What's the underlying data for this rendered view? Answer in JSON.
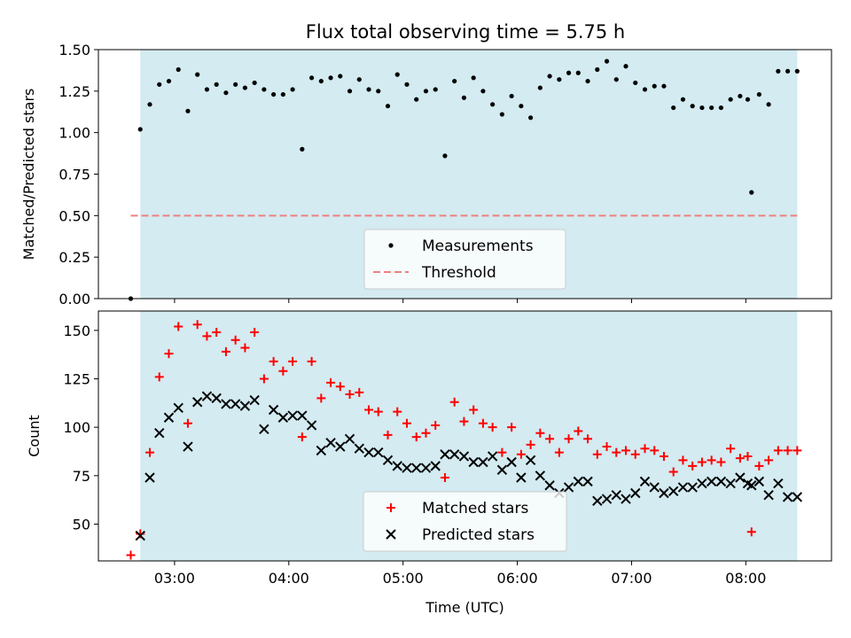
{
  "title": "Flux total observing time = 5.75 h",
  "colors": {
    "shade": "#d3ebf1",
    "measurement": "#000000",
    "threshold": "#f08080",
    "matched": "#ff0000",
    "predicted": "#000000"
  },
  "top_legend": {
    "measurements": "Measurements",
    "threshold": "Threshold"
  },
  "bottom_legend": {
    "matched": "Matched stars",
    "predicted": "Predicted stars"
  },
  "chart_data": [
    {
      "type": "scatter",
      "ylabel": "Matched/Predicted stars",
      "xlabel": "",
      "xlim": [
        "02:20",
        "08:45"
      ],
      "ylim": [
        0,
        1.5
      ],
      "yticks": [
        "0.00",
        "0.25",
        "0.50",
        "0.75",
        "1.00",
        "1.25",
        "1.50"
      ],
      "xticks": [
        "03:00",
        "04:00",
        "05:00",
        "06:00",
        "07:00",
        "08:00"
      ],
      "shaded_range": [
        "02:42",
        "08:27"
      ],
      "threshold": {
        "name": "Threshold",
        "y": 0.5,
        "x_range": [
          "02:37",
          "08:27"
        ]
      },
      "legend": "lower center",
      "series": [
        {
          "name": "Measurements",
          "x": [
            "02:37",
            "02:42",
            "02:47",
            "02:52",
            "02:57",
            "03:02",
            "03:07",
            "03:12",
            "03:17",
            "03:22",
            "03:27",
            "03:32",
            "03:37",
            "03:42",
            "03:47",
            "03:52",
            "03:57",
            "04:02",
            "04:07",
            "04:12",
            "04:17",
            "04:22",
            "04:27",
            "04:32",
            "04:37",
            "04:42",
            "04:47",
            "04:52",
            "04:57",
            "05:02",
            "05:07",
            "05:12",
            "05:17",
            "05:22",
            "05:27",
            "05:32",
            "05:37",
            "05:42",
            "05:47",
            "05:52",
            "05:57",
            "06:02",
            "06:07",
            "06:12",
            "06:17",
            "06:22",
            "06:27",
            "06:32",
            "06:37",
            "06:42",
            "06:47",
            "06:52",
            "06:57",
            "07:02",
            "07:07",
            "07:12",
            "07:17",
            "07:22",
            "07:27",
            "07:32",
            "07:37",
            "07:42",
            "07:47",
            "07:52",
            "07:57",
            "08:01",
            "08:03",
            "08:07",
            "08:12",
            "08:17",
            "08:22",
            "08:27"
          ],
          "y": [
            0.0,
            1.02,
            1.17,
            1.29,
            1.31,
            1.38,
            1.13,
            1.35,
            1.26,
            1.29,
            1.24,
            1.29,
            1.27,
            1.3,
            1.26,
            1.23,
            1.23,
            1.26,
            0.9,
            1.33,
            1.31,
            1.33,
            1.34,
            1.25,
            1.32,
            1.26,
            1.25,
            1.16,
            1.35,
            1.29,
            1.2,
            1.25,
            1.26,
            0.86,
            1.31,
            1.21,
            1.33,
            1.25,
            1.17,
            1.11,
            1.22,
            1.16,
            1.09,
            1.27,
            1.34,
            1.32,
            1.36,
            1.36,
            1.31,
            1.38,
            1.43,
            1.32,
            1.4,
            1.3,
            1.26,
            1.28,
            1.28,
            1.15,
            1.2,
            1.16,
            1.15,
            1.15,
            1.15,
            1.2,
            1.22,
            1.2,
            0.64,
            1.23,
            1.17,
            1.37,
            1.37,
            1.37
          ]
        }
      ]
    },
    {
      "type": "scatter",
      "ylabel": "Count",
      "xlabel": "Time (UTC)",
      "xlim": [
        "02:20",
        "08:45"
      ],
      "ylim": [
        31,
        160
      ],
      "yticks": [
        "50",
        "75",
        "100",
        "125",
        "150"
      ],
      "xticks": [
        "03:00",
        "04:00",
        "05:00",
        "06:00",
        "07:00",
        "08:00"
      ],
      "shaded_range": [
        "02:42",
        "08:27"
      ],
      "legend": "lower center",
      "series": [
        {
          "name": "Matched stars",
          "x": [
            "02:37",
            "02:42",
            "02:47",
            "02:52",
            "02:57",
            "03:02",
            "03:07",
            "03:12",
            "03:17",
            "03:22",
            "03:27",
            "03:32",
            "03:37",
            "03:42",
            "03:47",
            "03:52",
            "03:57",
            "04:02",
            "04:07",
            "04:12",
            "04:17",
            "04:22",
            "04:27",
            "04:32",
            "04:37",
            "04:42",
            "04:47",
            "04:52",
            "04:57",
            "05:02",
            "05:07",
            "05:12",
            "05:17",
            "05:22",
            "05:27",
            "05:32",
            "05:37",
            "05:42",
            "05:47",
            "05:52",
            "05:57",
            "06:02",
            "06:07",
            "06:12",
            "06:17",
            "06:22",
            "06:27",
            "06:32",
            "06:37",
            "06:42",
            "06:47",
            "06:52",
            "06:57",
            "07:02",
            "07:07",
            "07:12",
            "07:17",
            "07:22",
            "07:27",
            "07:32",
            "07:37",
            "07:42",
            "07:47",
            "07:52",
            "07:57",
            "08:01",
            "08:03",
            "08:07",
            "08:12",
            "08:17",
            "08:22",
            "08:27"
          ],
          "y": [
            34,
            45,
            87,
            126,
            138,
            152,
            102,
            153,
            147,
            149,
            139,
            145,
            141,
            149,
            125,
            134,
            129,
            134,
            95,
            134,
            115,
            123,
            121,
            117,
            118,
            109,
            108,
            96,
            108,
            102,
            95,
            97,
            101,
            74,
            113,
            103,
            109,
            102,
            100,
            87,
            100,
            86,
            91,
            97,
            94,
            87,
            94,
            98,
            94,
            86,
            90,
            87,
            88,
            86,
            89,
            88,
            85,
            77,
            83,
            80,
            82,
            83,
            82,
            89,
            84,
            85,
            46,
            80,
            83,
            88,
            88,
            88
          ]
        },
        {
          "name": "Predicted stars",
          "x": [
            "02:42",
            "02:47",
            "02:52",
            "02:57",
            "03:02",
            "03:07",
            "03:12",
            "03:17",
            "03:22",
            "03:27",
            "03:32",
            "03:37",
            "03:42",
            "03:47",
            "03:52",
            "03:57",
            "04:02",
            "04:07",
            "04:12",
            "04:17",
            "04:22",
            "04:27",
            "04:32",
            "04:37",
            "04:42",
            "04:47",
            "04:52",
            "04:57",
            "05:02",
            "05:07",
            "05:12",
            "05:17",
            "05:22",
            "05:27",
            "05:32",
            "05:37",
            "05:42",
            "05:47",
            "05:52",
            "05:57",
            "06:02",
            "06:07",
            "06:12",
            "06:17",
            "06:22",
            "06:27",
            "06:32",
            "06:37",
            "06:42",
            "06:47",
            "06:52",
            "06:57",
            "07:02",
            "07:07",
            "07:12",
            "07:17",
            "07:22",
            "07:27",
            "07:32",
            "07:37",
            "07:42",
            "07:47",
            "07:52",
            "07:57",
            "08:01",
            "08:03",
            "08:07",
            "08:12",
            "08:17",
            "08:22",
            "08:27"
          ],
          "y": [
            44,
            74,
            97,
            105,
            110,
            90,
            113,
            116,
            115,
            112,
            112,
            111,
            114,
            99,
            109,
            105,
            106,
            106,
            101,
            88,
            92,
            90,
            94,
            89,
            87,
            87,
            83,
            80,
            79,
            79,
            79,
            80,
            86,
            86,
            85,
            82,
            82,
            85,
            78,
            82,
            74,
            83,
            75,
            70,
            66,
            69,
            72,
            72,
            62,
            63,
            65,
            63,
            66,
            72,
            69,
            66,
            67,
            69,
            69,
            71,
            72,
            72,
            71,
            74,
            71,
            70,
            72,
            65,
            71,
            64,
            64
          ]
        }
      ]
    }
  ]
}
